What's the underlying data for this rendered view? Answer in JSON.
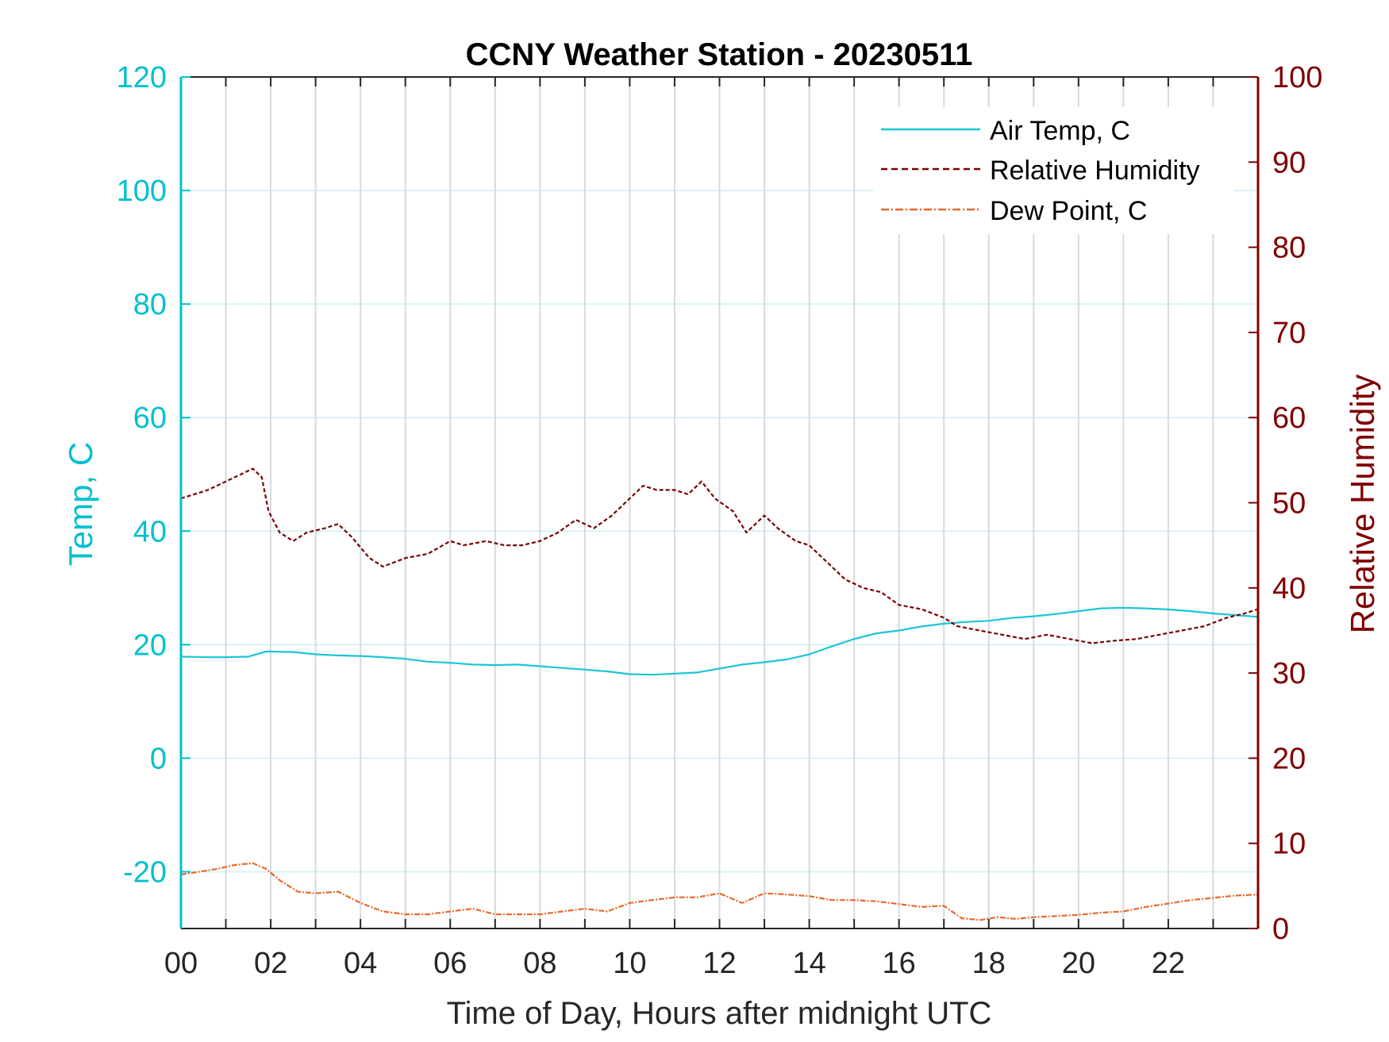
{
  "chart_data": {
    "type": "line",
    "title": "CCNY Weather Station - 20230511",
    "xlabel": "Time of Day, Hours after midnight UTC",
    "ylabel_left": "Temp, C",
    "ylabel_right": "Relative Humidity",
    "xlim": [
      0,
      24
    ],
    "ylim_left": [
      -30,
      120
    ],
    "ylim_right": [
      0,
      100
    ],
    "x_ticks": [
      0,
      2,
      4,
      6,
      8,
      10,
      12,
      14,
      16,
      18,
      20,
      22
    ],
    "x_tick_labels": [
      "00",
      "02",
      "04",
      "06",
      "08",
      "10",
      "12",
      "14",
      "16",
      "18",
      "20",
      "22"
    ],
    "y_left_ticks": [
      -20,
      0,
      20,
      40,
      60,
      80,
      100,
      120
    ],
    "y_left_tick_labels": [
      "-20",
      "0",
      "20",
      "40",
      "60",
      "80",
      "100",
      "120"
    ],
    "y_right_ticks": [
      0,
      10,
      20,
      30,
      40,
      50,
      60,
      70,
      80,
      90,
      100
    ],
    "y_right_tick_labels": [
      "0",
      "10",
      "20",
      "30",
      "40",
      "50",
      "60",
      "70",
      "80",
      "90",
      "100"
    ],
    "grid": true,
    "legend_position": "top-right",
    "colors": {
      "left_axis": "#00c0d0",
      "right_axis": "#800000",
      "air_temp": "#1ac6d6",
      "humidity": "#7a0000",
      "dew_point": "#e8692a",
      "grid_vertical": "#d6dbe0",
      "grid_horizontal": "#d8f3f6"
    },
    "series": [
      {
        "name": "Air Temp, C",
        "axis": "left",
        "style": "solid",
        "x": [
          0,
          0.5,
          1,
          1.5,
          1.9,
          2.5,
          3,
          3.5,
          4,
          4.5,
          5,
          5.5,
          6,
          6.5,
          7,
          7.5,
          8,
          8.5,
          9,
          9.5,
          10,
          10.5,
          11,
          11.5,
          12,
          12.5,
          13,
          13.5,
          14,
          14.5,
          15,
          15.5,
          16,
          16.5,
          17,
          17.5,
          18,
          18.5,
          19,
          19.5,
          20,
          20.5,
          21,
          21.5,
          22,
          22.5,
          23,
          23.5,
          24
        ],
        "values": [
          17.9,
          17.8,
          17.8,
          17.9,
          18.8,
          18.7,
          18.3,
          18.1,
          18.0,
          17.8,
          17.5,
          17.0,
          16.8,
          16.5,
          16.4,
          16.5,
          16.2,
          15.9,
          15.6,
          15.3,
          14.8,
          14.7,
          14.9,
          15.1,
          15.8,
          16.5,
          16.9,
          17.4,
          18.3,
          19.7,
          21.0,
          22.0,
          22.5,
          23.2,
          23.7,
          24.0,
          24.2,
          24.7,
          25.0,
          25.4,
          25.9,
          26.4,
          26.5,
          26.4,
          26.2,
          25.9,
          25.5,
          25.2,
          24.9
        ]
      },
      {
        "name": "Relative Humidity",
        "axis": "right",
        "style": "dashed",
        "x": [
          0,
          0.3,
          0.6,
          1.0,
          1.4,
          1.6,
          1.8,
          1.95,
          2.2,
          2.5,
          2.8,
          3.2,
          3.5,
          3.8,
          4.2,
          4.5,
          5.0,
          5.5,
          6.0,
          6.3,
          6.8,
          7.2,
          7.6,
          8.0,
          8.4,
          8.8,
          9.2,
          9.6,
          10.0,
          10.3,
          10.6,
          11.0,
          11.3,
          11.6,
          11.9,
          12.3,
          12.6,
          13.0,
          13.3,
          13.7,
          14.0,
          14.4,
          14.8,
          15.2,
          15.6,
          16.0,
          16.5,
          17.0,
          17.3,
          17.8,
          18.3,
          18.8,
          19.3,
          19.8,
          20.3,
          20.8,
          21.3,
          21.8,
          22.3,
          22.8,
          23.3,
          23.7,
          24.0
        ],
        "values": [
          50.5,
          51.0,
          51.5,
          52.5,
          53.5,
          54.0,
          53.0,
          49.0,
          46.5,
          45.5,
          46.5,
          47.0,
          47.5,
          46.0,
          43.5,
          42.5,
          43.5,
          44.0,
          45.5,
          45.0,
          45.5,
          45.0,
          45.0,
          45.5,
          46.5,
          48.0,
          47.0,
          48.5,
          50.5,
          52.0,
          51.5,
          51.5,
          51.0,
          52.5,
          50.5,
          49.0,
          46.5,
          48.5,
          47.0,
          45.5,
          45.0,
          43.0,
          41.0,
          40.0,
          39.5,
          38.0,
          37.5,
          36.5,
          35.5,
          35.0,
          34.5,
          34.0,
          34.5,
          34.0,
          33.5,
          33.8,
          34.0,
          34.5,
          35.0,
          35.5,
          36.5,
          37.0,
          37.5
        ]
      },
      {
        "name": "Dew Point, C",
        "axis": "left",
        "style": "dash-dot",
        "x": [
          0,
          0.4,
          0.8,
          1.2,
          1.6,
          1.9,
          2.2,
          2.6,
          3.0,
          3.5,
          4.0,
          4.5,
          5.0,
          5.5,
          6.0,
          6.5,
          7.0,
          7.5,
          8.0,
          8.5,
          9.0,
          9.5,
          10.0,
          10.5,
          11.0,
          11.5,
          12.0,
          12.5,
          13.0,
          13.5,
          14.0,
          14.5,
          15.0,
          15.5,
          16.0,
          16.5,
          17.0,
          17.4,
          17.8,
          18.2,
          18.6,
          19.0,
          19.5,
          20.0,
          20.5,
          21.0,
          21.5,
          22.0,
          22.5,
          23.0,
          23.5,
          24.0
        ],
        "values": [
          -20.5,
          -20.0,
          -19.5,
          -18.8,
          -18.5,
          -19.5,
          -21.5,
          -23.5,
          -23.8,
          -23.5,
          -25.5,
          -27.0,
          -27.5,
          -27.5,
          -27.0,
          -26.5,
          -27.5,
          -27.5,
          -27.5,
          -27.0,
          -26.5,
          -27.0,
          -25.5,
          -25.0,
          -24.5,
          -24.5,
          -23.8,
          -25.5,
          -23.8,
          -24.0,
          -24.3,
          -25.0,
          -25.0,
          -25.2,
          -25.7,
          -26.2,
          -26.0,
          -28.2,
          -28.5,
          -28.0,
          -28.3,
          -28.0,
          -27.8,
          -27.6,
          -27.2,
          -27.0,
          -26.2,
          -25.6,
          -25.0,
          -24.6,
          -24.2,
          -24.0
        ]
      }
    ]
  }
}
